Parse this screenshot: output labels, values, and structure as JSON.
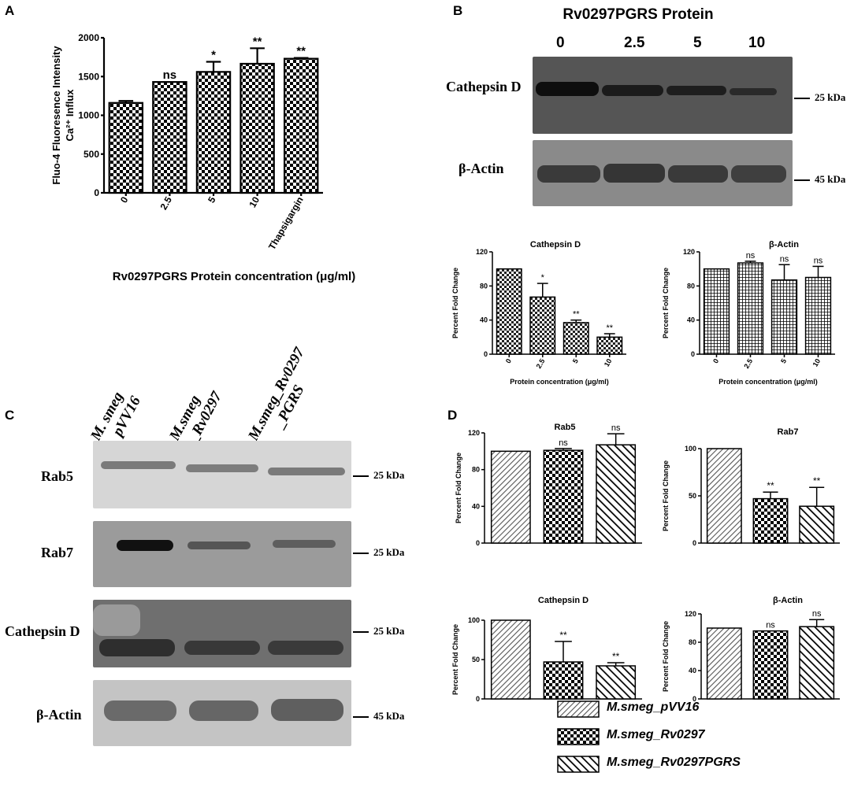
{
  "panel_letters": {
    "a": "A",
    "b": "B",
    "c": "C",
    "d": "D"
  },
  "blots_b": {
    "title": "Rv0297PGRS Protein",
    "lanes": [
      "0",
      "2.5",
      "5",
      "10"
    ],
    "cathepsin_label": "Cathepsin D",
    "actin_label": "β-Actin",
    "cathepsin_kda": "25 kDa",
    "actin_kda": "45 kDa"
  },
  "blots_c": {
    "lane_titles": [
      {
        "line1": "M. smeg",
        "line2": "pVV16"
      },
      {
        "line1": "M.smeg",
        "line2": "_Rv0297"
      },
      {
        "line1": "M.smeg_Rv0297",
        "line2": "_PGRS"
      }
    ],
    "rows": [
      {
        "label": "Rab5",
        "kda": "25 kDa"
      },
      {
        "label": "Rab7",
        "kda": "25 kDa"
      },
      {
        "label": "Cathepsin D",
        "kda": "25 kDa"
      },
      {
        "label": "β-Actin",
        "kda": "45 kDa"
      }
    ]
  },
  "legend": {
    "items": [
      "M.smeg_pVV16",
      "M.smeg_Rv0297",
      "M.smeg_Rv0297PGRS"
    ]
  },
  "colors": {
    "bar_stroke": "#000000",
    "background": "#ffffff",
    "blot_band": "#2e2e2e"
  },
  "chart_data": [
    {
      "id": "A",
      "type": "bar",
      "ylabel": "Fluo-4 Fluoresence Intensity Ca²⁺ Influx",
      "xlabel": "Rv0297PGRS Protein concentration (μg/ml)",
      "categories": [
        "0",
        "2.5",
        "5",
        "10",
        "Thapsigargin"
      ],
      "values": [
        1160,
        1430,
        1560,
        1665,
        1730
      ],
      "errors": [
        25,
        0,
        130,
        200,
        10
      ],
      "significance": [
        "",
        "ns",
        "*",
        "**",
        "**"
      ],
      "ylim": [
        0,
        2000
      ],
      "yticks": [
        0,
        500,
        1000,
        1500,
        2000
      ],
      "pattern": "checker"
    },
    {
      "id": "B1",
      "type": "bar",
      "title": "Cathepsin D",
      "ylabel": "Percent Fold Change",
      "xlabel": "Protein concentration (μg/ml)",
      "categories": [
        "0",
        "2.5",
        "5",
        "10"
      ],
      "values": [
        100,
        67,
        37,
        20
      ],
      "errors": [
        0,
        16,
        3,
        4
      ],
      "significance": [
        "",
        "*",
        "**",
        "**"
      ],
      "ylim": [
        0,
        120
      ],
      "yticks": [
        0,
        40,
        80,
        120
      ],
      "pattern": "checker"
    },
    {
      "id": "B2",
      "type": "bar",
      "title": "β-Actin",
      "ylabel": "Percent Fold Change",
      "xlabel": "Protein concentration (μg/ml)",
      "categories": [
        "0",
        "2.5",
        "5",
        "10"
      ],
      "values": [
        100,
        107,
        87,
        90
      ],
      "errors": [
        0,
        2,
        18,
        13
      ],
      "significance": [
        "",
        "ns",
        "ns",
        "ns"
      ],
      "ylim": [
        0,
        120
      ],
      "yticks": [
        0,
        40,
        80,
        120
      ],
      "pattern": "grid"
    },
    {
      "id": "D1",
      "type": "bar",
      "title": "Rab5",
      "ylabel": "Percent Fold Change",
      "categories": [
        "M.smeg_pVV16",
        "M.smeg_Rv0297",
        "M.smeg_Rv0297PGRS"
      ],
      "values": [
        100,
        101,
        107
      ],
      "errors": [
        0,
        2,
        12
      ],
      "significance": [
        "",
        "ns",
        "ns"
      ],
      "ylim": [
        0,
        120
      ],
      "yticks": [
        0,
        40,
        80,
        120
      ]
    },
    {
      "id": "D2",
      "type": "bar",
      "title": "Rab7",
      "ylabel": "Percent Fold Change",
      "categories": [
        "M.smeg_pVV16",
        "M.smeg_Rv0297",
        "M.smeg_Rv0297PGRS"
      ],
      "values": [
        100,
        47,
        39
      ],
      "errors": [
        0,
        7,
        20
      ],
      "significance": [
        "",
        "**",
        "**"
      ],
      "ylim": [
        0,
        100
      ],
      "yticks": [
        0,
        50,
        100
      ]
    },
    {
      "id": "D3",
      "type": "bar",
      "title": "Cathepsin D",
      "ylabel": "Percent Fold Change",
      "categories": [
        "M.smeg_pVV16",
        "M.smeg_Rv0297",
        "M.smeg_Rv0297PGRS"
      ],
      "values": [
        100,
        47,
        42
      ],
      "errors": [
        0,
        26,
        4
      ],
      "significance": [
        "",
        "**",
        "**"
      ],
      "ylim": [
        0,
        100
      ],
      "yticks": [
        0,
        50,
        100
      ]
    },
    {
      "id": "D4",
      "type": "bar",
      "title": "β-Actin",
      "ylabel": "Percent Fold Change",
      "categories": [
        "M.smeg_pVV16",
        "M.smeg_Rv0297",
        "M.smeg_Rv0297PGRS"
      ],
      "values": [
        100,
        96,
        102
      ],
      "errors": [
        0,
        0,
        10
      ],
      "significance": [
        "",
        "ns",
        "ns"
      ],
      "ylim": [
        0,
        120
      ],
      "yticks": [
        0,
        40,
        80,
        120
      ]
    }
  ]
}
